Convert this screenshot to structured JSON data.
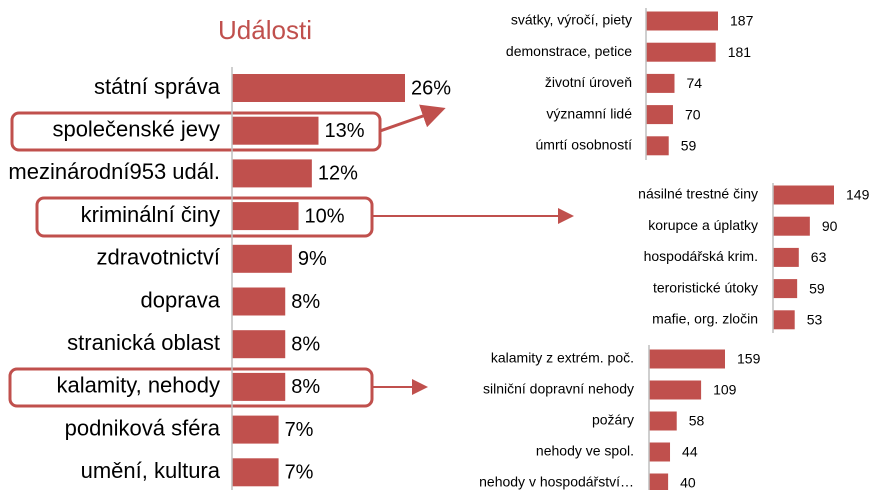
{
  "chart_data": [
    {
      "type": "bar",
      "orientation": "horizontal",
      "title": "Události",
      "color": "#c0504d",
      "categories": [
        "státní správa",
        "společenské jevy",
        "mezinárodní953 udál.",
        "kriminální činy",
        "zdravotnictví",
        "doprava",
        "stranická oblast",
        "kalamity, nehody",
        "podniková sféra",
        "umění, kultura"
      ],
      "values": [
        26,
        13,
        12,
        10,
        9,
        8,
        8,
        8,
        7,
        7
      ],
      "value_labels": [
        "26%",
        "13%",
        "12%",
        "10%",
        "9%",
        "8%",
        "8%",
        "8%",
        "7%",
        "7%"
      ]
    },
    {
      "type": "bar",
      "orientation": "horizontal",
      "color": "#c0504d",
      "categories": [
        "svátky, výročí, piety",
        "demonstrace, petice",
        "životní úroveň",
        "významní lidé",
        "úmrtí osobností"
      ],
      "values": [
        187,
        181,
        74,
        70,
        59
      ]
    },
    {
      "type": "bar",
      "orientation": "horizontal",
      "color": "#c0504d",
      "categories": [
        "násilné trestné činy",
        "korupce a úplatky",
        "hospodářská krim.",
        "teroristické útoky",
        "mafie, org. zločin"
      ],
      "values": [
        149,
        90,
        63,
        59,
        53
      ]
    },
    {
      "type": "bar",
      "orientation": "horizontal",
      "color": "#c0504d",
      "categories": [
        "kalamity z extrém. poč.",
        "silniční dopravní nehody",
        "požáry",
        "nehody ve spol.",
        "nehody v hospodářství…"
      ],
      "values": [
        159,
        109,
        58,
        44,
        40
      ]
    }
  ]
}
